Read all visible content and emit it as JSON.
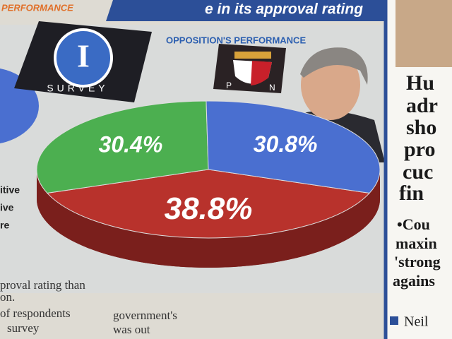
{
  "chart_data": {
    "type": "pie",
    "title": "e in its approval rating",
    "subtitle": "OPPOSITION'S PERFORMANCE",
    "categories": [
      null,
      null,
      null
    ],
    "values": [
      30.4,
      30.8,
      38.8
    ],
    "value_labels": [
      "30.4%",
      "30.8%",
      "38.8%"
    ],
    "colors": [
      "#4caf50",
      "#4a6fd0",
      "#b8322c"
    ]
  },
  "article": {
    "section_label": "PERFORMANCE",
    "survey_logo": {
      "letter": "I",
      "word": "SURVEY"
    },
    "pn_logo": [
      "P",
      "N"
    ],
    "left_column": [
      "itive",
      "ive",
      "re"
    ],
    "body_left": [
      "proval rating than",
      "on.",
      "of respondents",
      "survey"
    ],
    "body_mid": [
      "government's",
      "was out"
    ],
    "headline": [
      "Hu",
      "adr",
      "sho",
      "pro",
      "cuc",
      "fin"
    ],
    "bullet": [
      "•Cou",
      "maxin",
      "'strong",
      "agains"
    ],
    "byline": "Neil"
  }
}
